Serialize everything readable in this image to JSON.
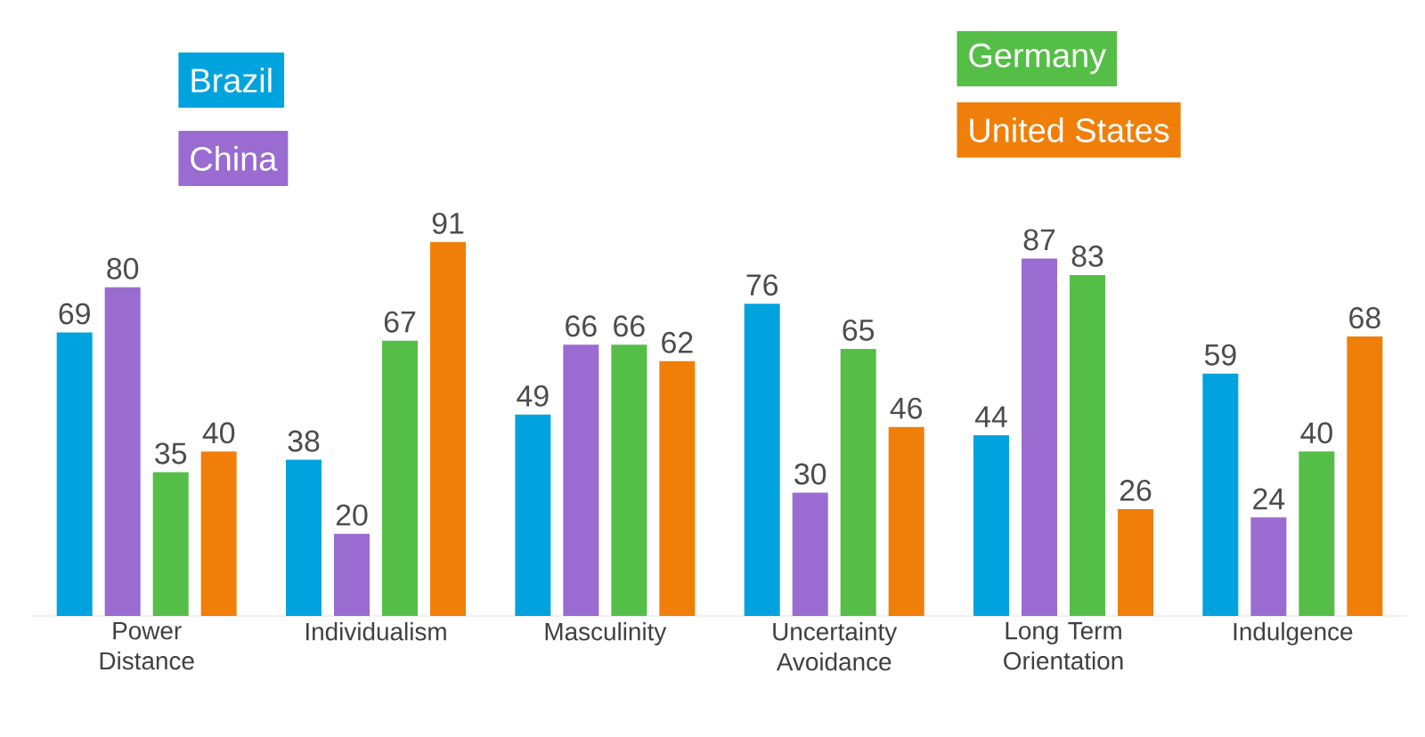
{
  "chart_data": {
    "type": "bar",
    "categories": [
      "Power Distance",
      "Individualism",
      "Masculinity",
      "Uncertainty Avoidance",
      "Long Term Orientation",
      "Indulgence"
    ],
    "series": [
      {
        "name": "Brazil",
        "color": "#00a3de",
        "values": [
          69,
          38,
          49,
          76,
          44,
          59
        ]
      },
      {
        "name": "China",
        "color": "#9a6bd0",
        "values": [
          80,
          20,
          66,
          30,
          87,
          24
        ]
      },
      {
        "name": "Germany",
        "color": "#55be47",
        "values": [
          35,
          67,
          66,
          65,
          83,
          40
        ]
      },
      {
        "name": "United States",
        "color": "#f07f09",
        "values": [
          40,
          91,
          62,
          46,
          26,
          68
        ]
      }
    ],
    "data_labels": true,
    "legend": "top"
  }
}
